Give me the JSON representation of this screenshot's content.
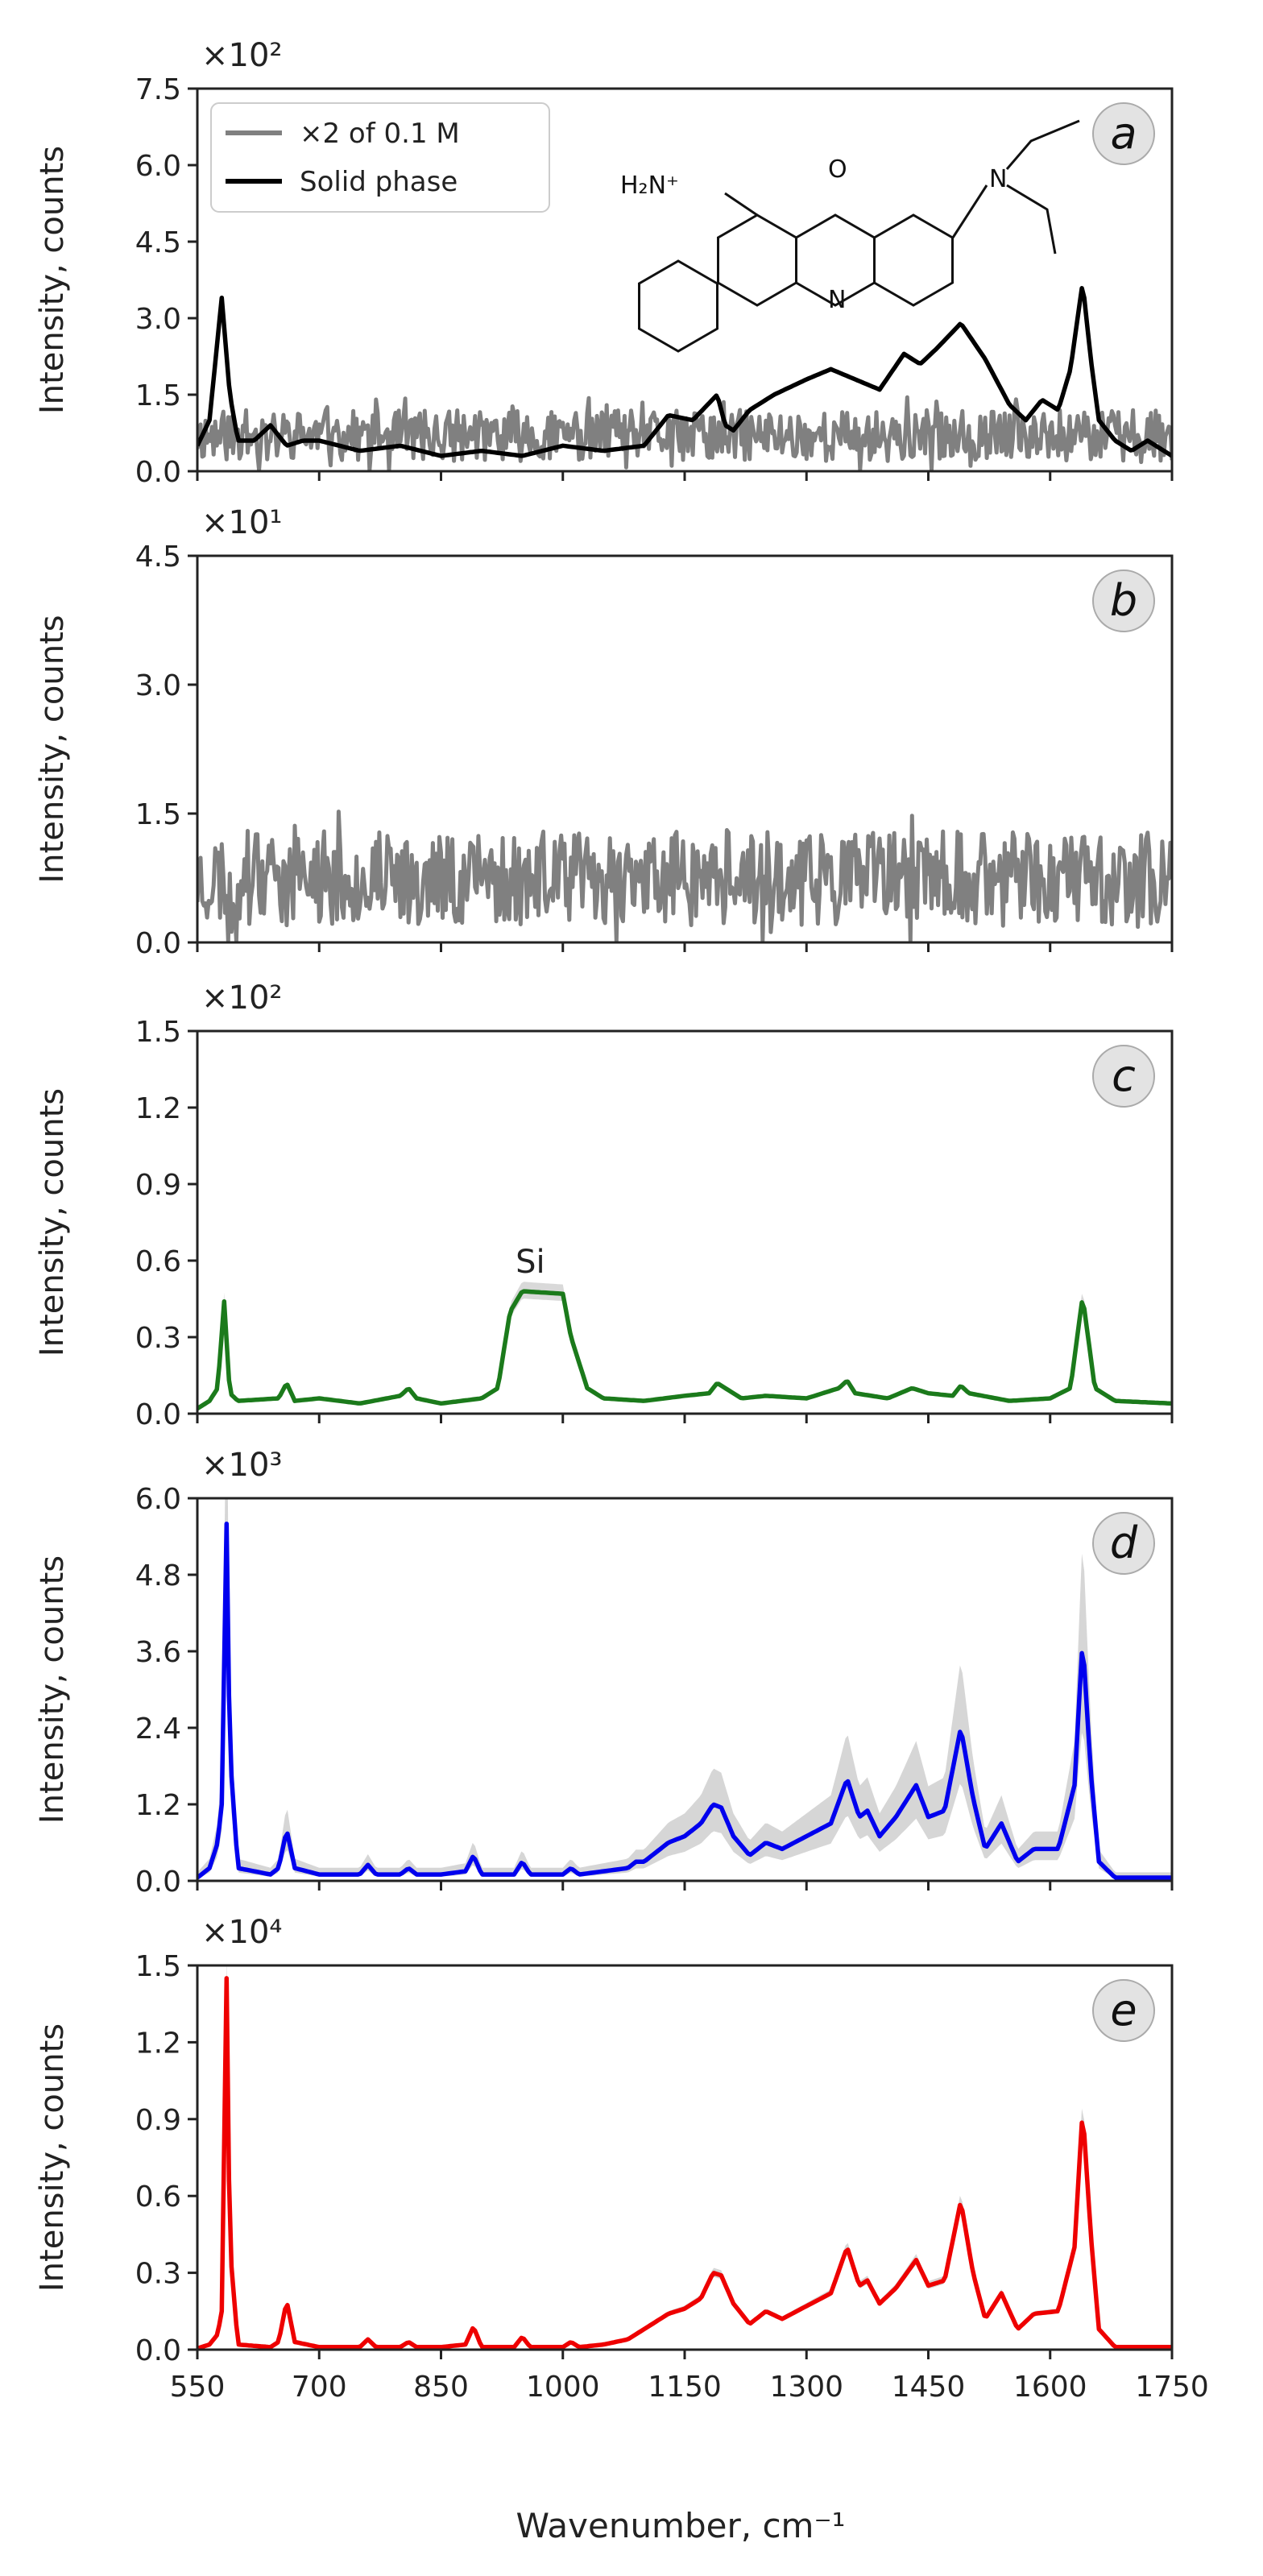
{
  "figure": {
    "xlabel": "Wavenumber, cm⁻¹",
    "xticks": [
      550,
      700,
      850,
      1000,
      1150,
      1300,
      1450,
      1600,
      1750
    ]
  },
  "chart_data": [
    {
      "panel": "a",
      "type": "line",
      "ylabel": "Intensity, counts",
      "multiplier": "×10²",
      "yticks": [
        "0.0",
        "1.5",
        "3.0",
        "4.5",
        "6.0",
        "7.5"
      ],
      "ylim": [
        0,
        7.5
      ],
      "xlim": [
        550,
        1750
      ],
      "legend": {
        "placement": "top-left",
        "entries": [
          "×2 of 0.1 M",
          "Solid phase"
        ]
      },
      "structure": {
        "amine_label": "H₂N⁺",
        "ring_o": "O",
        "ring_n": "N",
        "sub_n": "N"
      },
      "series": [
        {
          "name": "×2 of 0.1 M",
          "color": "#808080",
          "kind": "noise",
          "baseline": 0.7,
          "amplitude": 0.5,
          "seed": 11,
          "x": [
            550,
            1750
          ],
          "y": [
            0.7,
            0.7
          ]
        },
        {
          "name": "Solid phase",
          "color": "#000000",
          "kind": "line",
          "x": [
            550,
            565,
            580,
            590,
            600,
            620,
            640,
            660,
            680,
            700,
            750,
            800,
            850,
            900,
            950,
            1000,
            1050,
            1100,
            1130,
            1160,
            1190,
            1200,
            1210,
            1230,
            1260,
            1300,
            1330,
            1360,
            1390,
            1420,
            1440,
            1460,
            1490,
            1520,
            1550,
            1570,
            1590,
            1610,
            1625,
            1640,
            1650,
            1660,
            1680,
            1700,
            1720,
            1750
          ],
          "y": [
            0.5,
            1.0,
            3.4,
            1.5,
            0.6,
            0.6,
            0.9,
            0.5,
            0.6,
            0.6,
            0.4,
            0.5,
            0.3,
            0.4,
            0.3,
            0.5,
            0.4,
            0.5,
            1.1,
            1.0,
            1.5,
            0.9,
            0.8,
            1.2,
            1.5,
            1.8,
            2.0,
            1.8,
            1.6,
            2.3,
            2.1,
            2.4,
            2.9,
            2.2,
            1.3,
            1.0,
            1.4,
            1.2,
            2.0,
            3.7,
            2.2,
            1.0,
            0.6,
            0.4,
            0.6,
            0.3
          ]
        }
      ]
    },
    {
      "panel": "b",
      "type": "line",
      "ylabel": "Intensity, counts",
      "multiplier": "×10¹",
      "yticks": [
        "0.0",
        "1.5",
        "3.0",
        "4.5"
      ],
      "ylim": [
        0,
        4.5
      ],
      "xlim": [
        550,
        1750
      ],
      "series": [
        {
          "color": "#808080",
          "kind": "noise",
          "baseline": 0.75,
          "amplitude": 0.55,
          "seed": 23,
          "x": [
            550,
            1750
          ],
          "y": [
            0.75,
            0.75
          ]
        }
      ]
    },
    {
      "panel": "c",
      "type": "line",
      "ylabel": "Intensity, counts",
      "multiplier": "×10²",
      "yticks": [
        "0.0",
        "0.3",
        "0.6",
        "0.9",
        "1.2",
        "1.5"
      ],
      "ylim": [
        0,
        1.5
      ],
      "xlim": [
        550,
        1750
      ],
      "annotation": {
        "text": "Si",
        "x": 960,
        "y": 0.6
      },
      "series": [
        {
          "color": "#1b7a1b",
          "kind": "line",
          "band": 0.06,
          "bandcolor": "#d9d9d9",
          "x": [
            550,
            565,
            575,
            583,
            590,
            600,
            650,
            660,
            670,
            700,
            750,
            800,
            810,
            820,
            850,
            900,
            920,
            935,
            950,
            1000,
            1010,
            1030,
            1050,
            1100,
            1150,
            1180,
            1190,
            1200,
            1220,
            1250,
            1300,
            1340,
            1350,
            1360,
            1400,
            1430,
            1450,
            1480,
            1490,
            1500,
            1550,
            1600,
            1625,
            1640,
            1655,
            1680,
            1750
          ],
          "y": [
            0.02,
            0.05,
            0.1,
            0.44,
            0.08,
            0.05,
            0.06,
            0.12,
            0.05,
            0.06,
            0.04,
            0.07,
            0.1,
            0.06,
            0.04,
            0.06,
            0.1,
            0.4,
            0.48,
            0.47,
            0.3,
            0.1,
            0.06,
            0.05,
            0.07,
            0.08,
            0.12,
            0.1,
            0.06,
            0.07,
            0.06,
            0.1,
            0.13,
            0.08,
            0.06,
            0.1,
            0.08,
            0.07,
            0.11,
            0.08,
            0.05,
            0.06,
            0.1,
            0.46,
            0.1,
            0.05,
            0.04
          ]
        }
      ]
    },
    {
      "panel": "d",
      "type": "line",
      "ylabel": "Intensity, counts",
      "multiplier": "×10³",
      "yticks": [
        "0.0",
        "1.2",
        "2.4",
        "3.6",
        "4.8",
        "6.0"
      ],
      "ylim": [
        0,
        6.0
      ],
      "xlim": [
        550,
        1750
      ],
      "series": [
        {
          "color": "#0000ee",
          "kind": "line",
          "band": 0.35,
          "bandcolor": "#d6d6d6",
          "x": [
            550,
            565,
            575,
            580,
            586,
            590,
            600,
            640,
            650,
            660,
            670,
            700,
            750,
            760,
            770,
            800,
            810,
            820,
            850,
            880,
            890,
            900,
            940,
            950,
            960,
            1000,
            1010,
            1020,
            1050,
            1080,
            1090,
            1100,
            1130,
            1150,
            1170,
            1185,
            1195,
            1210,
            1230,
            1250,
            1270,
            1300,
            1330,
            1350,
            1365,
            1375,
            1390,
            1410,
            1435,
            1450,
            1470,
            1490,
            1505,
            1520,
            1540,
            1560,
            1580,
            1610,
            1630,
            1640,
            1650,
            1660,
            1680,
            1750
          ],
          "y": [
            0.05,
            0.2,
            0.6,
            1.2,
            5.6,
            2.0,
            0.2,
            0.1,
            0.2,
            0.8,
            0.2,
            0.1,
            0.1,
            0.25,
            0.1,
            0.1,
            0.2,
            0.1,
            0.1,
            0.15,
            0.4,
            0.1,
            0.1,
            0.3,
            0.1,
            0.1,
            0.2,
            0.1,
            0.15,
            0.2,
            0.3,
            0.3,
            0.6,
            0.7,
            0.9,
            1.2,
            1.15,
            0.7,
            0.4,
            0.6,
            0.5,
            0.7,
            0.9,
            1.6,
            1.0,
            1.1,
            0.7,
            1.0,
            1.5,
            1.0,
            1.1,
            2.4,
            1.3,
            0.5,
            0.9,
            0.3,
            0.5,
            0.5,
            1.5,
            3.8,
            1.7,
            0.3,
            0.05,
            0.05
          ]
        }
      ]
    },
    {
      "panel": "e",
      "type": "line",
      "ylabel": "Intensity, counts",
      "multiplier": "×10⁴",
      "yticks": [
        "0.0",
        "0.3",
        "0.6",
        "0.9",
        "1.2",
        "1.5"
      ],
      "ylim": [
        0,
        1.5
      ],
      "xlim": [
        550,
        1750
      ],
      "series": [
        {
          "color": "#ee0000",
          "kind": "line",
          "band": 0.05,
          "bandcolor": "#d6d6d6",
          "x": [
            550,
            565,
            575,
            580,
            586,
            590,
            600,
            640,
            650,
            660,
            670,
            700,
            750,
            760,
            770,
            800,
            810,
            820,
            850,
            880,
            890,
            900,
            940,
            950,
            960,
            1000,
            1010,
            1020,
            1050,
            1080,
            1100,
            1130,
            1150,
            1170,
            1185,
            1195,
            1210,
            1230,
            1250,
            1270,
            1300,
            1330,
            1350,
            1365,
            1375,
            1390,
            1410,
            1435,
            1450,
            1470,
            1490,
            1505,
            1520,
            1540,
            1560,
            1580,
            1610,
            1630,
            1640,
            1650,
            1660,
            1680,
            1750
          ],
          "y": [
            0.005,
            0.02,
            0.06,
            0.15,
            1.45,
            0.4,
            0.02,
            0.01,
            0.03,
            0.19,
            0.03,
            0.01,
            0.01,
            0.04,
            0.01,
            0.01,
            0.03,
            0.01,
            0.01,
            0.02,
            0.09,
            0.01,
            0.01,
            0.05,
            0.01,
            0.01,
            0.03,
            0.01,
            0.02,
            0.04,
            0.08,
            0.14,
            0.16,
            0.2,
            0.3,
            0.29,
            0.18,
            0.1,
            0.15,
            0.12,
            0.17,
            0.22,
            0.4,
            0.25,
            0.27,
            0.18,
            0.24,
            0.35,
            0.25,
            0.27,
            0.58,
            0.3,
            0.12,
            0.22,
            0.08,
            0.14,
            0.15,
            0.4,
            0.94,
            0.45,
            0.08,
            0.01,
            0.01
          ]
        }
      ]
    }
  ]
}
